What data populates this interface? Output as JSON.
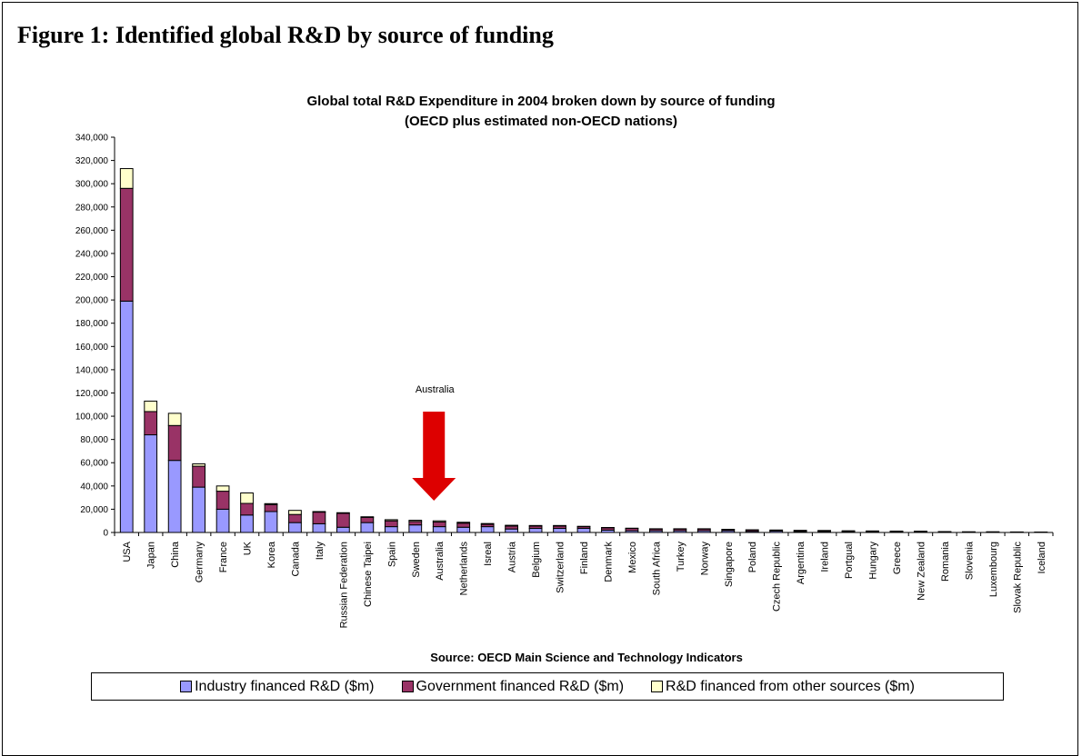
{
  "figure_title": "Figure 1: Identified global R&D by source of funding",
  "colors": {
    "industry": "#9999ff",
    "government": "#993366",
    "other": "#ffffcc",
    "annotation_arrow": "#dd0000"
  },
  "chart_data": {
    "type": "bar",
    "stacked": true,
    "title": "Global total R&D Expenditure in 2004 broken down by source of funding",
    "subtitle": "(OECD plus estimated non-OECD nations)",
    "xlabel": "Source: OECD Main Science and Technology Indicators",
    "ylabel": "",
    "ylim": [
      0,
      340000
    ],
    "ytick_step": 20000,
    "grid": false,
    "legend_position": "bottom",
    "annotation": {
      "text": "Australia",
      "target": "Australia"
    },
    "categories": [
      "USA",
      "Japan",
      "China",
      "Germany",
      "France",
      "UK",
      "Korea",
      "Canada",
      "Italy",
      "Russian Federation",
      "Chinese Taipei",
      "Spain",
      "Sweden",
      "Australia",
      "Netherlands",
      "Isreal",
      "Austria",
      "Belgium",
      "Switzerland",
      "Finland",
      "Denmark",
      "Mexico",
      "South Africa",
      "Turkey",
      "Norway",
      "Singapore",
      "Poland",
      "Czech Republic",
      "Argentina",
      "Ireland",
      "Portgual",
      "Hungary",
      "Greece",
      "New Zealand",
      "Romania",
      "Slovenia",
      "Luxembourg",
      "Slovak Republic",
      "Iceland"
    ],
    "series": [
      {
        "name": "Industry financed R&D ($m)",
        "values": [
          199000,
          84000,
          62000,
          39000,
          20000,
          15000,
          18000,
          8500,
          7500,
          4500,
          8500,
          5000,
          6500,
          5000,
          4500,
          5000,
          3000,
          3500,
          3500,
          3500,
          2000,
          1500,
          1500,
          1500,
          1500,
          1500,
          1000,
          1200,
          800,
          900,
          600,
          500,
          500,
          500,
          300,
          300,
          300,
          200,
          100
        ]
      },
      {
        "name": "Government financed R&D ($m)",
        "values": [
          97000,
          20000,
          30000,
          18000,
          15500,
          10000,
          6000,
          7000,
          10000,
          12000,
          4500,
          5000,
          3000,
          4000,
          3500,
          2000,
          2500,
          2000,
          2000,
          1500,
          2000,
          2000,
          1500,
          1500,
          1500,
          1000,
          1200,
          800,
          900,
          700,
          700,
          700,
          600,
          500,
          400,
          200,
          200,
          200,
          200
        ]
      },
      {
        "name": "R&D financed from other sources ($m)",
        "values": [
          17000,
          9000,
          10500,
          2000,
          4500,
          9000,
          800,
          3500,
          500,
          500,
          500,
          1000,
          1000,
          1000,
          800,
          700,
          700,
          500,
          500,
          300,
          300,
          200,
          200,
          200,
          200,
          200,
          100,
          100,
          100,
          100,
          100,
          100,
          100,
          100,
          50,
          50,
          50,
          50,
          50
        ]
      }
    ]
  }
}
